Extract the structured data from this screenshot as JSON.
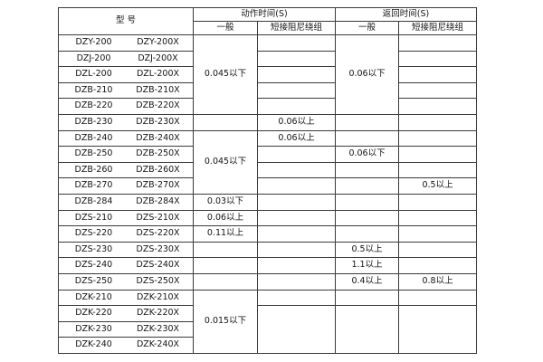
{
  "colors": {
    "border": "#3a3a3a",
    "text": "#141414",
    "background": "#ffffff"
  },
  "table": {
    "header": {
      "model": "型  号",
      "action_time": "动作时间(S)",
      "return_time": "返回时间(S)",
      "general": "一般",
      "damping": "短接阻尼绕组"
    },
    "columns": [
      "model",
      "action-general",
      "action-damping",
      "return-general",
      "return-damping"
    ],
    "rows": [
      {
        "model": [
          "DZY-200",
          "DZY-200X"
        ],
        "cells": [
          {
            "t": "0.045以下",
            "span": 5
          },
          {
            "t": ""
          },
          {
            "t": "0.06以下",
            "span": 5
          },
          {
            "t": ""
          }
        ]
      },
      {
        "model": [
          "DZJ-200",
          "DZJ-200X"
        ],
        "cells": [
          null,
          {
            "t": ""
          },
          null,
          {
            "t": ""
          }
        ]
      },
      {
        "model": [
          "DZL-200",
          "DZL-200X"
        ],
        "cells": [
          null,
          {
            "t": ""
          },
          null,
          {
            "t": ""
          }
        ]
      },
      {
        "model": [
          "DZB-210",
          "DZB-210X"
        ],
        "cells": [
          null,
          {
            "t": ""
          },
          null,
          {
            "t": ""
          }
        ]
      },
      {
        "model": [
          "DZB-220",
          "DZB-220X"
        ],
        "cells": [
          null,
          {
            "t": ""
          },
          null,
          {
            "t": ""
          }
        ]
      },
      {
        "model": [
          "DZB-230",
          "DZB-230X"
        ],
        "cells": [
          {
            "t": ""
          },
          {
            "t": "0.06以上"
          },
          {
            "t": ""
          },
          {
            "t": ""
          }
        ]
      },
      {
        "model": [
          "DZB-240",
          "DZB-240X"
        ],
        "cells": [
          {
            "t": "0.045以下",
            "span": 4
          },
          {
            "t": "0.06以上"
          },
          {
            "t": ""
          },
          {
            "t": ""
          }
        ]
      },
      {
        "model": [
          "DZB-250",
          "DZB-250X"
        ],
        "cells": [
          null,
          {
            "t": ""
          },
          {
            "t": "0.06以下"
          },
          {
            "t": ""
          }
        ]
      },
      {
        "model": [
          "DZB-260",
          "DZB-260X"
        ],
        "cells": [
          null,
          {
            "t": ""
          },
          {
            "t": ""
          },
          {
            "t": ""
          }
        ]
      },
      {
        "model": [
          "DZB-270",
          "DZB-270X"
        ],
        "cells": [
          null,
          {
            "t": ""
          },
          {
            "t": ""
          },
          {
            "t": "0.5以上"
          }
        ]
      },
      {
        "model": [
          "DZB-284",
          "DZB-284X"
        ],
        "cells": [
          {
            "t": "0.03以下"
          },
          {
            "t": ""
          },
          {
            "t": ""
          },
          {
            "t": ""
          }
        ]
      },
      {
        "model": [
          "DZS-210",
          "DZS-210X"
        ],
        "cells": [
          {
            "t": "0.06以上"
          },
          {
            "t": ""
          },
          {
            "t": ""
          },
          {
            "t": ""
          }
        ]
      },
      {
        "model": [
          "DZS-220",
          "DZS-220X"
        ],
        "cells": [
          {
            "t": "0.11以上"
          },
          {
            "t": ""
          },
          {
            "t": ""
          },
          {
            "t": ""
          }
        ]
      },
      {
        "model": [
          "DZS-230",
          "DZS-230X"
        ],
        "cells": [
          {
            "t": ""
          },
          {
            "t": ""
          },
          {
            "t": "0.5以上"
          },
          {
            "t": ""
          }
        ]
      },
      {
        "model": [
          "DZS-240",
          "DZS-240X"
        ],
        "cells": [
          {
            "t": ""
          },
          {
            "t": ""
          },
          {
            "t": "1.1以上"
          },
          {
            "t": ""
          }
        ]
      },
      {
        "model": [
          "DZS-250",
          "DZS-250X"
        ],
        "cells": [
          {
            "t": ""
          },
          {
            "t": ""
          },
          {
            "t": "0.4以上"
          },
          {
            "t": "0.8以上"
          }
        ]
      },
      {
        "model": [
          "DZK-210",
          "DZK-210X"
        ],
        "cells": [
          {
            "t": "0.015以下",
            "span": 4
          },
          {
            "t": ""
          },
          {
            "t": ""
          },
          {
            "t": ""
          }
        ]
      },
      {
        "model": [
          "DZK-220",
          "DZK-220X"
        ],
        "cells": [
          null,
          {
            "t": "",
            "span": 3
          },
          {
            "t": "",
            "span": 3
          },
          {
            "t": "",
            "span": 3
          }
        ]
      },
      {
        "model": [
          "DZK-230",
          "DZK-230X"
        ],
        "cells": [
          null,
          null,
          null,
          null
        ]
      },
      {
        "model": [
          "DZK-240",
          "DZK-240X"
        ],
        "cells": [
          null,
          null,
          null,
          null
        ]
      }
    ]
  }
}
